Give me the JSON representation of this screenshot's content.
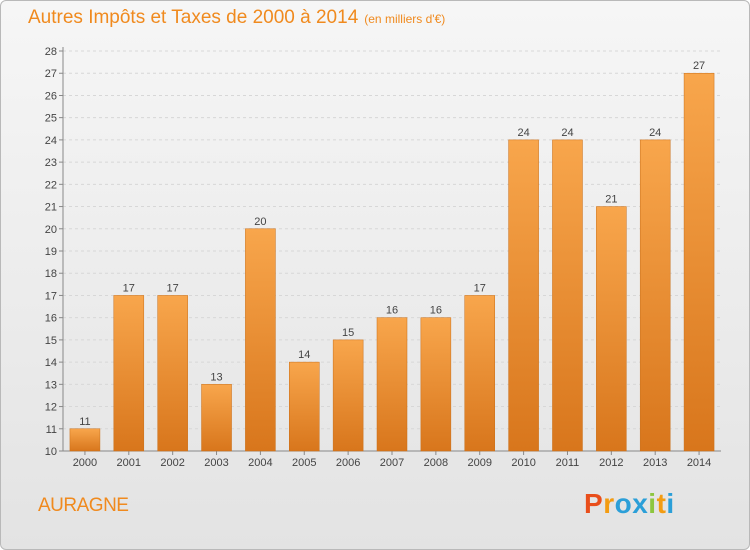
{
  "header": {
    "title": "Autres Impôts et Taxes de 2000 à 2014",
    "subtitle": "(en milliers d'€)"
  },
  "footer": {
    "commune": "AURAGNE",
    "logo_text": "Proxiti"
  },
  "colors": {
    "bar_light": "#f8a64c",
    "bar_dark": "#d8761c",
    "accent": "#f08a1e",
    "logo_letters": [
      "#e94e1b",
      "#f39c12",
      "#2b9fd8",
      "#2b9fd8",
      "#8dc63f",
      "#f39c12",
      "#2b9fd8"
    ]
  },
  "chart_data": {
    "type": "bar",
    "title": "Autres Impôts et Taxes de 2000 à 2014",
    "subtitle": "(en milliers d'€)",
    "xlabel": "",
    "ylabel": "",
    "categories": [
      "2000",
      "2001",
      "2002",
      "2003",
      "2004",
      "2005",
      "2006",
      "2007",
      "2008",
      "2009",
      "2010",
      "2011",
      "2012",
      "2013",
      "2014"
    ],
    "values": [
      11,
      17,
      17,
      13,
      20,
      14,
      15,
      16,
      16,
      17,
      24,
      24,
      21,
      24,
      27
    ],
    "ylim": [
      10,
      28
    ],
    "yticks": [
      10,
      11,
      12,
      13,
      14,
      15,
      16,
      17,
      18,
      19,
      20,
      21,
      22,
      23,
      24,
      25,
      26,
      27,
      28
    ],
    "grid": true,
    "legend": "none"
  }
}
